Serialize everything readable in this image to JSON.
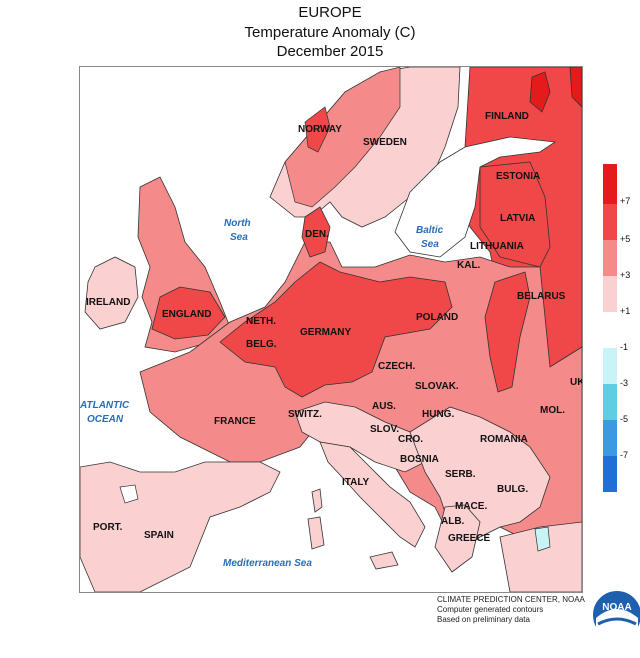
{
  "header": {
    "line1": "EUROPE",
    "line2": "Temperature Anomaly (C)",
    "line3": "December 2015"
  },
  "legend": {
    "labels": [
      "+7",
      "+5",
      "+3",
      "+1",
      "-1",
      "-3",
      "-5",
      "-7"
    ],
    "colors": [
      "#e41a1c",
      "#f04848",
      "#f58a8a",
      "#fbd0d0",
      "#ffffff",
      "#c8f4f8",
      "#5fcde4",
      "#3d9ae0",
      "#1f6fd6"
    ]
  },
  "colors": {
    "anom_1_3": "#fbd0d0",
    "anom_3_5": "#f58a8a",
    "anom_5_7": "#f04848",
    "anom_7_plus": "#e41a1c",
    "cold_1_3": "#c8f4f8",
    "sea_label": "#2a6db5"
  },
  "places": {
    "norway": "NORWAY",
    "sweden": "SWEDEN",
    "finland": "FINLAND",
    "estonia": "ESTONIA",
    "latvia": "LATVIA",
    "lithuania": "LITHUANIA",
    "kal": "KAL.",
    "belarus": "BELARUS",
    "den": "DEN.",
    "ireland": "IRELAND",
    "england": "ENGLAND",
    "neth": "NETH.",
    "belg": "BELG.",
    "germany": "GERMANY",
    "poland": "POLAND",
    "czech": "CZECH.",
    "slovak": "SLOVAK.",
    "uk_edge": "UK",
    "aus": "AUS.",
    "hung": "HUNG.",
    "mol": "MOL.",
    "france": "FRANCE",
    "switz": "SWITZ.",
    "slov": "SLOV.",
    "cro": "CRO.",
    "romania": "ROMANIA",
    "bosnia": "BOSNIA",
    "serb": "SERB.",
    "bulg": "BULG.",
    "italy": "ITALY",
    "mace": "MACE.",
    "alb": "ALB.",
    "greece": "GREECE",
    "port": "PORT.",
    "spain": "SPAIN"
  },
  "seas": {
    "north_1": "North",
    "north_2": "Sea",
    "baltic_1": "Baltic",
    "baltic_2": "Sea",
    "atlantic_1": "ATLANTIC",
    "atlantic_2": "OCEAN",
    "med": "Mediterranean Sea"
  },
  "credits": {
    "line1": "CLIMATE PREDICTION CENTER, NOAA",
    "line2": "Computer generated contours",
    "line3": "Based on preliminary data"
  },
  "logo": {
    "text": "NOAA"
  }
}
